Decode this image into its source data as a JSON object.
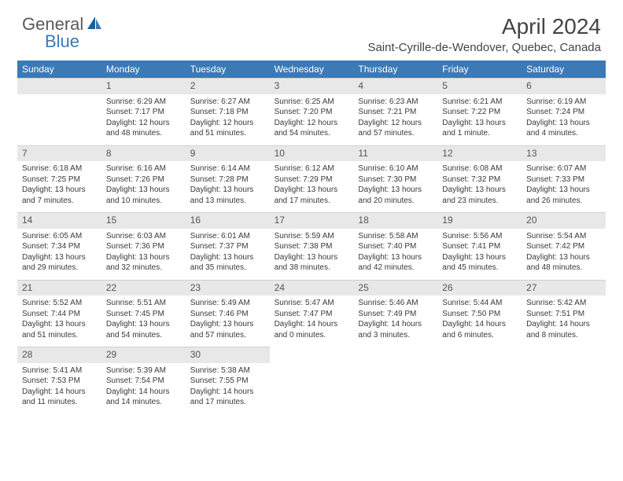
{
  "brand": {
    "part1": "General",
    "part2": "Blue"
  },
  "accent_color": "#3b7ab5",
  "header_bg": "#e8e8e8",
  "title": "April 2024",
  "location": "Saint-Cyrille-de-Wendover, Quebec, Canada",
  "day_names": [
    "Sunday",
    "Monday",
    "Tuesday",
    "Wednesday",
    "Thursday",
    "Friday",
    "Saturday"
  ],
  "weeks": [
    [
      null,
      {
        "n": "1",
        "r": "6:29 AM",
        "s": "7:17 PM",
        "d": "12 hours and 48 minutes."
      },
      {
        "n": "2",
        "r": "6:27 AM",
        "s": "7:18 PM",
        "d": "12 hours and 51 minutes."
      },
      {
        "n": "3",
        "r": "6:25 AM",
        "s": "7:20 PM",
        "d": "12 hours and 54 minutes."
      },
      {
        "n": "4",
        "r": "6:23 AM",
        "s": "7:21 PM",
        "d": "12 hours and 57 minutes."
      },
      {
        "n": "5",
        "r": "6:21 AM",
        "s": "7:22 PM",
        "d": "13 hours and 1 minute."
      },
      {
        "n": "6",
        "r": "6:19 AM",
        "s": "7:24 PM",
        "d": "13 hours and 4 minutes."
      }
    ],
    [
      {
        "n": "7",
        "r": "6:18 AM",
        "s": "7:25 PM",
        "d": "13 hours and 7 minutes."
      },
      {
        "n": "8",
        "r": "6:16 AM",
        "s": "7:26 PM",
        "d": "13 hours and 10 minutes."
      },
      {
        "n": "9",
        "r": "6:14 AM",
        "s": "7:28 PM",
        "d": "13 hours and 13 minutes."
      },
      {
        "n": "10",
        "r": "6:12 AM",
        "s": "7:29 PM",
        "d": "13 hours and 17 minutes."
      },
      {
        "n": "11",
        "r": "6:10 AM",
        "s": "7:30 PM",
        "d": "13 hours and 20 minutes."
      },
      {
        "n": "12",
        "r": "6:08 AM",
        "s": "7:32 PM",
        "d": "13 hours and 23 minutes."
      },
      {
        "n": "13",
        "r": "6:07 AM",
        "s": "7:33 PM",
        "d": "13 hours and 26 minutes."
      }
    ],
    [
      {
        "n": "14",
        "r": "6:05 AM",
        "s": "7:34 PM",
        "d": "13 hours and 29 minutes."
      },
      {
        "n": "15",
        "r": "6:03 AM",
        "s": "7:36 PM",
        "d": "13 hours and 32 minutes."
      },
      {
        "n": "16",
        "r": "6:01 AM",
        "s": "7:37 PM",
        "d": "13 hours and 35 minutes."
      },
      {
        "n": "17",
        "r": "5:59 AM",
        "s": "7:38 PM",
        "d": "13 hours and 38 minutes."
      },
      {
        "n": "18",
        "r": "5:58 AM",
        "s": "7:40 PM",
        "d": "13 hours and 42 minutes."
      },
      {
        "n": "19",
        "r": "5:56 AM",
        "s": "7:41 PM",
        "d": "13 hours and 45 minutes."
      },
      {
        "n": "20",
        "r": "5:54 AM",
        "s": "7:42 PM",
        "d": "13 hours and 48 minutes."
      }
    ],
    [
      {
        "n": "21",
        "r": "5:52 AM",
        "s": "7:44 PM",
        "d": "13 hours and 51 minutes."
      },
      {
        "n": "22",
        "r": "5:51 AM",
        "s": "7:45 PM",
        "d": "13 hours and 54 minutes."
      },
      {
        "n": "23",
        "r": "5:49 AM",
        "s": "7:46 PM",
        "d": "13 hours and 57 minutes."
      },
      {
        "n": "24",
        "r": "5:47 AM",
        "s": "7:47 PM",
        "d": "14 hours and 0 minutes."
      },
      {
        "n": "25",
        "r": "5:46 AM",
        "s": "7:49 PM",
        "d": "14 hours and 3 minutes."
      },
      {
        "n": "26",
        "r": "5:44 AM",
        "s": "7:50 PM",
        "d": "14 hours and 6 minutes."
      },
      {
        "n": "27",
        "r": "5:42 AM",
        "s": "7:51 PM",
        "d": "14 hours and 8 minutes."
      }
    ],
    [
      {
        "n": "28",
        "r": "5:41 AM",
        "s": "7:53 PM",
        "d": "14 hours and 11 minutes."
      },
      {
        "n": "29",
        "r": "5:39 AM",
        "s": "7:54 PM",
        "d": "14 hours and 14 minutes."
      },
      {
        "n": "30",
        "r": "5:38 AM",
        "s": "7:55 PM",
        "d": "14 hours and 17 minutes."
      },
      null,
      null,
      null,
      null
    ]
  ],
  "labels": {
    "sunrise": "Sunrise:",
    "sunset": "Sunset:",
    "daylight": "Daylight:"
  }
}
